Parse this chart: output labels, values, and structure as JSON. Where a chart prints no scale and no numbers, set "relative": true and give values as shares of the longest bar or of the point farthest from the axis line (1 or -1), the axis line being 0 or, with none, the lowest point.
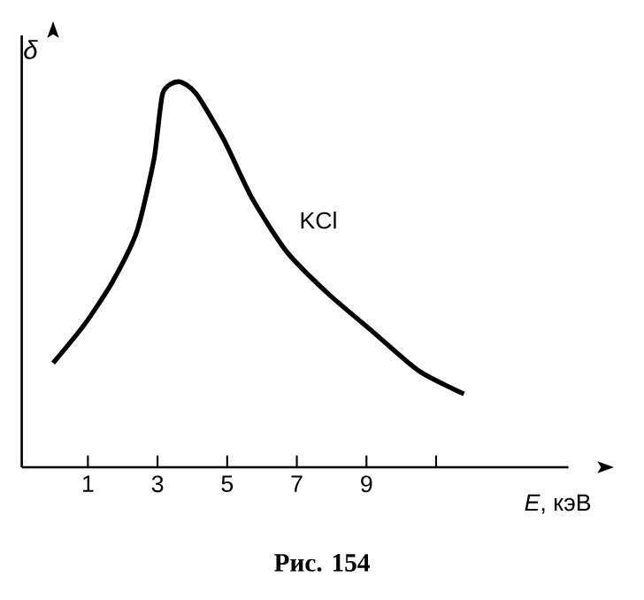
{
  "chart_data": {
    "type": "line",
    "xlabel": "*E*, кэВ",
    "ylabel": "δ",
    "annotations": [
      "Рис. 154"
    ],
    "relative": true,
    "xlim": [
      -0.9,
      14.8
    ],
    "xticks": [
      1,
      3,
      5,
      7,
      9,
      {
        "value": 11,
        "label": null
      }
    ],
    "legend": false,
    "grid": false,
    "series": [
      {
        "name": "KCl",
        "color": "#000000",
        "x": [
          0,
          0.9,
          1.7,
          2.4,
          2.9,
          3.15,
          3.6,
          4.1,
          4.9,
          5.7,
          6.7,
          7.9,
          9.2,
          10.5,
          11.8
        ],
        "values": [
          0.27,
          0.37,
          0.48,
          0.61,
          0.8,
          0.97,
          1.0,
          0.97,
          0.85,
          0.7,
          0.56,
          0.45,
          0.35,
          0.25,
          0.19
        ]
      }
    ]
  }
}
